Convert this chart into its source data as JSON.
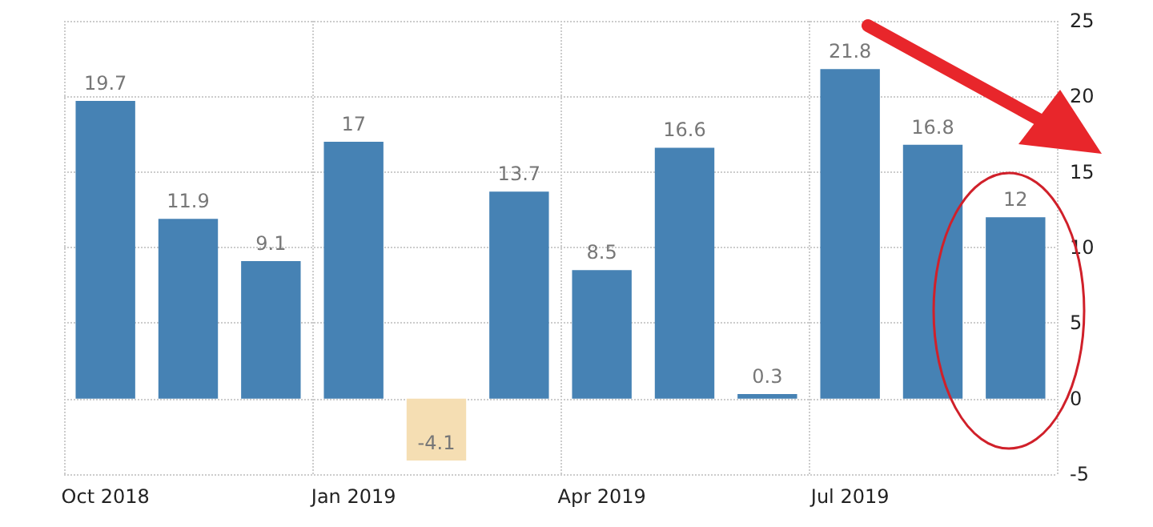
{
  "chart_data": {
    "type": "bar",
    "categories": [
      "Oct 2018",
      null,
      null,
      "Jan 2019",
      null,
      null,
      "Apr 2019",
      null,
      null,
      "Jul 2019",
      null,
      null
    ],
    "values": [
      19.7,
      11.9,
      9.1,
      17,
      -4.1,
      13.7,
      8.5,
      16.6,
      0.3,
      21.8,
      16.8,
      12
    ],
    "colors": [
      "#4682b4",
      "#4682b4",
      "#4682b4",
      "#4682b4",
      "#f5deb3",
      "#4682b4",
      "#4682b4",
      "#4682b4",
      "#4682b4",
      "#4682b4",
      "#4682b4",
      "#4682b4"
    ],
    "ylim": [
      -5,
      25
    ],
    "yticks": [
      -5,
      0,
      5,
      10,
      15,
      20,
      25
    ],
    "grid": true,
    "data_labels": true
  }
}
